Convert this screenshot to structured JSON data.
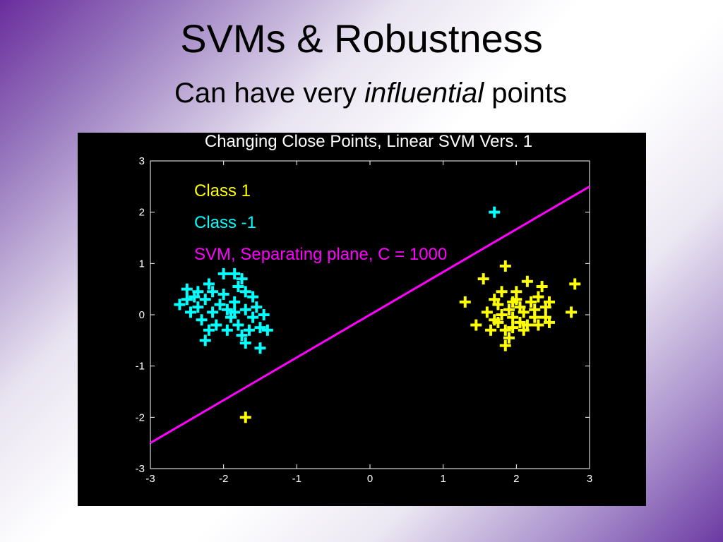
{
  "slide": {
    "title": "SVMs & Robustness",
    "subtitle_prefix": "Can have very ",
    "subtitle_emphasis": "influential",
    "subtitle_suffix": " points"
  },
  "chart_data": {
    "type": "scatter",
    "title": "Changing Close Points, Linear SVM Vers. 1",
    "xlabel": "",
    "ylabel": "",
    "xlim": [
      -3,
      3
    ],
    "ylim": [
      -3,
      3
    ],
    "xticks": [
      -3,
      -2,
      -1,
      0,
      1,
      2,
      3
    ],
    "yticks": [
      -3,
      -2,
      -1,
      0,
      1,
      2,
      3
    ],
    "grid": false,
    "legend_position": "top-left",
    "background": "#000000",
    "series": [
      {
        "name": "Class 1",
        "marker": "plus",
        "color": "#ffff00",
        "points": [
          [
            -1.7,
            -2.0
          ],
          [
            1.85,
            0.95
          ],
          [
            1.55,
            0.7
          ],
          [
            1.3,
            0.25
          ],
          [
            2.15,
            0.65
          ],
          [
            2.35,
            0.55
          ],
          [
            2.45,
            0.25
          ],
          [
            2.8,
            0.6
          ],
          [
            2.75,
            0.05
          ],
          [
            1.45,
            -0.2
          ],
          [
            1.6,
            0.05
          ],
          [
            1.7,
            -0.1
          ],
          [
            1.75,
            0.2
          ],
          [
            1.8,
            0.45
          ],
          [
            1.85,
            -0.3
          ],
          [
            1.9,
            0.1
          ],
          [
            1.95,
            -0.05
          ],
          [
            2.0,
            0.3
          ],
          [
            2.05,
            -0.15
          ],
          [
            2.1,
            0.05
          ],
          [
            2.2,
            0.25
          ],
          [
            2.25,
            -0.05
          ],
          [
            2.3,
            0.35
          ],
          [
            2.4,
            -0.05
          ],
          [
            2.0,
            0.45
          ],
          [
            1.9,
            -0.45
          ],
          [
            1.85,
            -0.6
          ],
          [
            2.1,
            -0.3
          ],
          [
            2.3,
            -0.2
          ],
          [
            1.7,
            0.3
          ],
          [
            1.65,
            -0.3
          ],
          [
            2.45,
            -0.15
          ],
          [
            2.15,
            -0.2
          ],
          [
            1.95,
            0.25
          ],
          [
            2.05,
            0.15
          ],
          [
            1.8,
            0.0
          ],
          [
            2.25,
            0.1
          ],
          [
            1.95,
            -0.25
          ],
          [
            2.4,
            0.15
          ],
          [
            1.75,
            -0.15
          ]
        ]
      },
      {
        "name": "Class -1",
        "marker": "plus",
        "color": "#00ffff",
        "points": [
          [
            1.7,
            2.0
          ],
          [
            -2.5,
            0.5
          ],
          [
            -2.4,
            0.35
          ],
          [
            -2.6,
            0.2
          ],
          [
            -2.35,
            0.15
          ],
          [
            -2.2,
            0.6
          ],
          [
            -2.0,
            0.8
          ],
          [
            -1.85,
            0.8
          ],
          [
            -1.75,
            0.7
          ],
          [
            -1.7,
            0.45
          ],
          [
            -2.45,
            0.05
          ],
          [
            -2.3,
            -0.1
          ],
          [
            -2.25,
            0.3
          ],
          [
            -2.15,
            0.05
          ],
          [
            -2.1,
            -0.2
          ],
          [
            -2.0,
            0.4
          ],
          [
            -1.95,
            0.1
          ],
          [
            -1.9,
            -0.05
          ],
          [
            -1.85,
            0.25
          ],
          [
            -1.8,
            -0.2
          ],
          [
            -1.7,
            0.1
          ],
          [
            -1.65,
            -0.3
          ],
          [
            -1.6,
            -0.05
          ],
          [
            -1.55,
            0.15
          ],
          [
            -1.5,
            -0.25
          ],
          [
            -1.45,
            0.0
          ],
          [
            -1.4,
            -0.3
          ],
          [
            -1.5,
            -0.65
          ],
          [
            -1.7,
            -0.55
          ],
          [
            -2.25,
            -0.5
          ],
          [
            -1.95,
            -0.3
          ],
          [
            -2.05,
            0.2
          ],
          [
            -2.35,
            0.45
          ],
          [
            -2.5,
            0.3
          ],
          [
            -1.6,
            0.35
          ],
          [
            -1.8,
            0.55
          ],
          [
            -1.75,
            -0.4
          ],
          [
            -2.15,
            0.45
          ],
          [
            -1.85,
            0.05
          ],
          [
            -2.2,
            -0.3
          ]
        ]
      }
    ],
    "lines": [
      {
        "name": "SVM, Separating plane, C = 1000",
        "color": "#ff00ff",
        "x": [
          -3,
          3
        ],
        "y": [
          -2.5,
          2.5
        ]
      }
    ]
  }
}
